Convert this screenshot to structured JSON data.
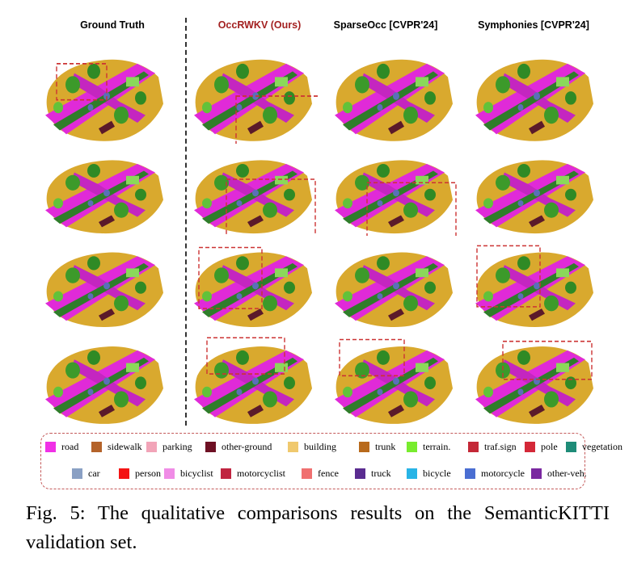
{
  "figure": {
    "columns": [
      "Ground Truth",
      "OccRWKV (Ours)",
      "SparseOcc [CVPR'24]",
      "Symphonies [CVPR'24]"
    ],
    "highlight_color": "#a32020",
    "caption": "Fig. 5: The qualitative comparisons results on the SemanticKITTI validation set."
  },
  "legend": [
    {
      "label": "road",
      "color": "#f030e6"
    },
    {
      "label": "sidewalk",
      "color": "#b4632a"
    },
    {
      "label": "parking",
      "color": "#f2a4b8"
    },
    {
      "label": "other-ground",
      "color": "#6e1024"
    },
    {
      "label": "building",
      "color": "#f0c96e"
    },
    {
      "label": "trunk",
      "color": "#b86a1c"
    },
    {
      "label": "terrain.",
      "color": "#78ec2e"
    },
    {
      "label": "traf.sign",
      "color": "#c42837"
    },
    {
      "label": "pole",
      "color": "#d42838"
    },
    {
      "label": "vegetation",
      "color": "#1e8c78"
    },
    {
      "label": "car",
      "color": "#8aa0c4"
    },
    {
      "label": "person",
      "color": "#f41414"
    },
    {
      "label": "bicyclist",
      "color": "#f08ce6"
    },
    {
      "label": "motorcyclist",
      "color": "#c02440"
    },
    {
      "label": "fence",
      "color": "#f07070"
    },
    {
      "label": "truck",
      "color": "#5a2c90"
    },
    {
      "label": "bicycle",
      "color": "#28b4e6"
    },
    {
      "label": "motorcycle",
      "color": "#4a6ed2"
    },
    {
      "label": "other-veh.",
      "color": "#7a28a0"
    }
  ]
}
